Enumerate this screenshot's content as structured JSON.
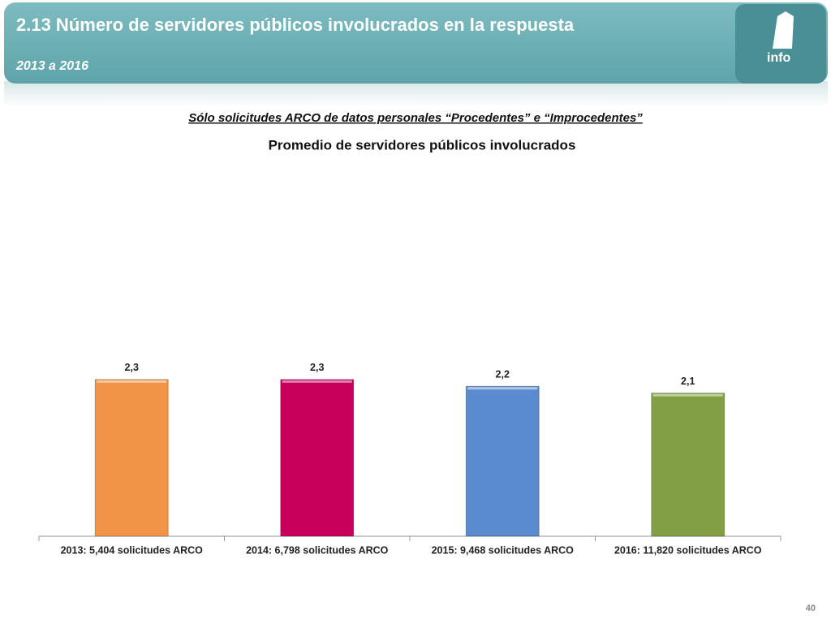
{
  "header": {
    "title": "2.13 Número de servidores públicos involucrados en la respuesta",
    "subtitle": "2013 a 2016",
    "logo_text": "info"
  },
  "chart_data": {
    "type": "bar",
    "title": "Sólo solicitudes ARCO de datos personales “Procedentes” e “Improcedentes”",
    "subtitle": "Promedio de servidores públicos involucrados",
    "categories": [
      "2013: 5,404 solicitudes ARCO",
      "2014: 6,798 solicitudes ARCO",
      "2015: 9,468 solicitudes ARCO",
      "2016: 11,820 solicitudes ARCO"
    ],
    "values": [
      2.3,
      2.3,
      2.2,
      2.1
    ],
    "value_labels": [
      "2,3",
      "2,3",
      "2,2",
      "2,1"
    ],
    "colors": [
      "#f29447",
      "#c8005c",
      "#5a8ad0",
      "#82a043"
    ]
  },
  "page_number": "40"
}
